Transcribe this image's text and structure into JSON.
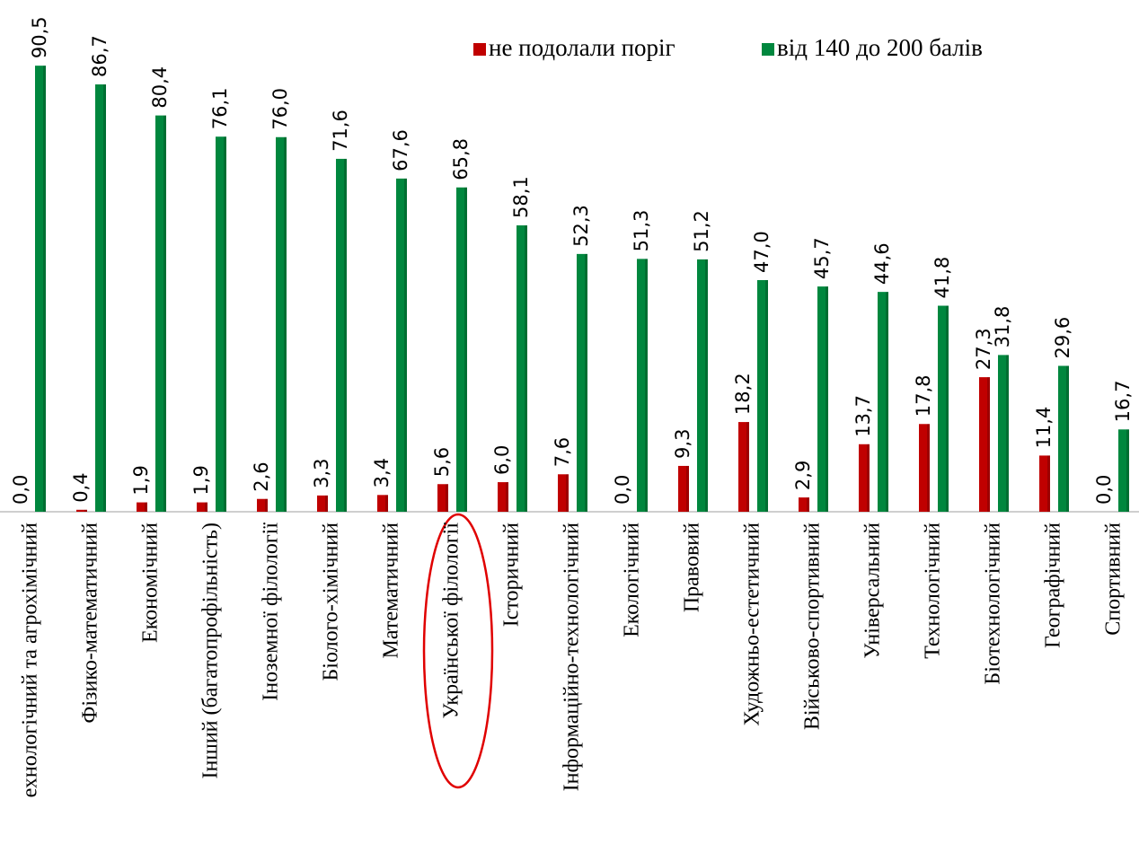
{
  "chart_data": {
    "type": "bar",
    "categories": [
      "ехнологічний та агрохімічний",
      "Фізико-математичний",
      "Економічний",
      "Інший (багатопрофільність)",
      "Іноземної філології",
      "Біолого-хімічний",
      "Математичний",
      "Української філології",
      "Історичний",
      "Інформаційно-технологічний",
      "Екологічний",
      "Правовий",
      "Художньо-естетичний",
      "Військово-спортивний",
      "Універсальний",
      "Технологічний",
      "Біотехнологічний",
      "Географічний",
      "Спортивний"
    ],
    "series": [
      {
        "name": "не подолали поріг",
        "color": "#c00000",
        "values": [
          0.0,
          0.4,
          1.9,
          1.9,
          2.6,
          3.3,
          3.4,
          5.6,
          6.0,
          7.6,
          0.0,
          9.3,
          18.2,
          2.9,
          13.7,
          17.8,
          27.3,
          11.4,
          0.0
        ],
        "value_labels": [
          "0,0",
          "0,4",
          "1,9",
          "1,9",
          "2,6",
          "3,3",
          "3,4",
          "5,6",
          "6,0",
          "7,6",
          "0,0",
          "9,3",
          "18,2",
          "2,9",
          "13,7",
          "17,8",
          "27,3",
          "11,4",
          "0,0"
        ]
      },
      {
        "name": "від 140 до 200 балів",
        "color": "#00873e",
        "values": [
          90.5,
          86.7,
          80.4,
          76.1,
          76.0,
          71.6,
          67.6,
          65.8,
          58.1,
          52.3,
          51.3,
          51.2,
          47.0,
          45.7,
          44.6,
          41.8,
          31.8,
          29.6,
          16.7
        ],
        "value_labels": [
          "90,5",
          "86,7",
          "80,4",
          "76,1",
          "76,0",
          "71,6",
          "67,6",
          "65,8",
          "58,1",
          "52,3",
          "51,3",
          "51,2",
          "47,0",
          "45,7",
          "44,6",
          "41,8",
          "31,8",
          "29,6",
          "16,7"
        ]
      }
    ],
    "legend": "top-right"
  }
}
